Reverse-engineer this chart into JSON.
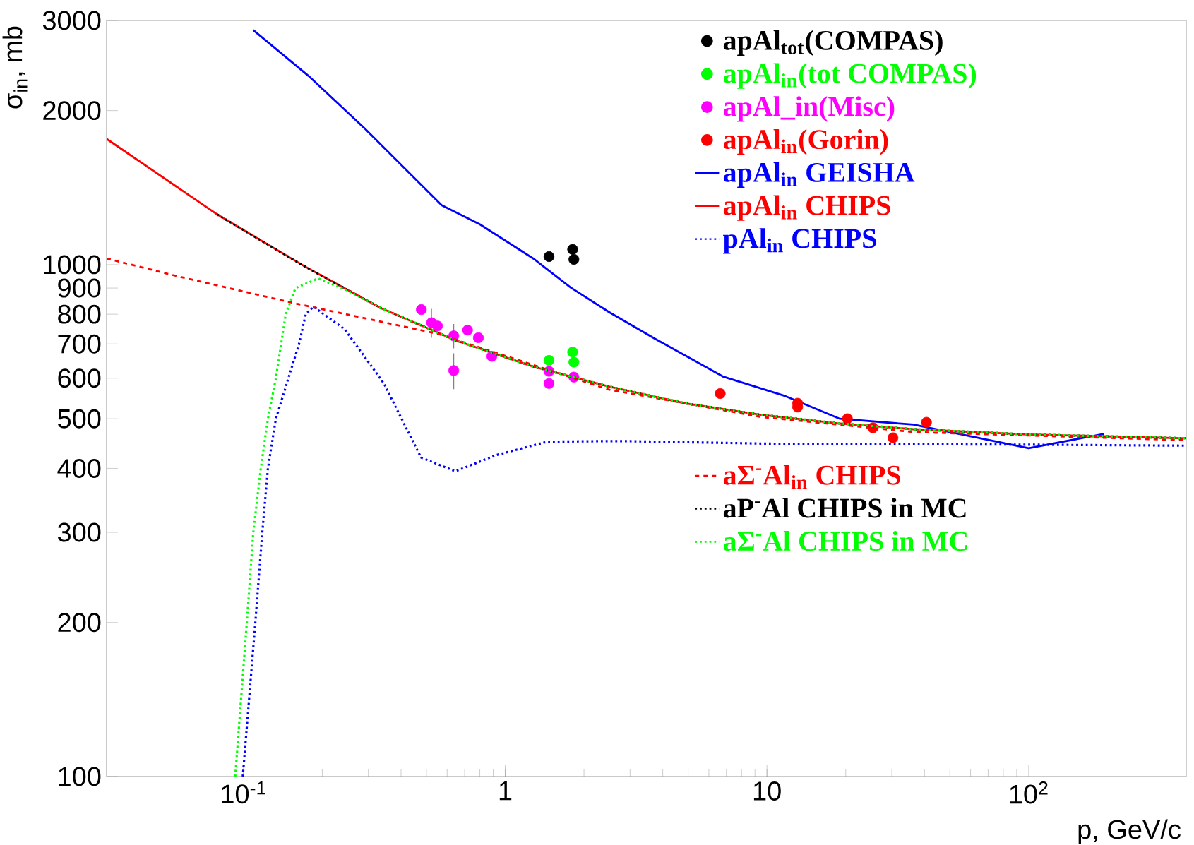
{
  "chart_data": {
    "type": "line",
    "xlabel": "p, GeV/c",
    "ylabel": "σ$_{in}$, mb",
    "log": "xy",
    "legend": "top right",
    "xlim": [
      0.03,
      400
    ],
    "ylim": [
      100,
      3000
    ],
    "xticks": [
      {
        "value": 0.1,
        "label": "10$^{-1}$"
      },
      1,
      10,
      {
        "value": 100,
        "label": "10$^{2}$"
      }
    ],
    "yticks": [
      100,
      200,
      300,
      400,
      500,
      600,
      700,
      800,
      900,
      1000,
      2000,
      3000
    ],
    "series": [
      {
        "name": "apAl$_{tot}$(COMPAS)",
        "type": "scatter",
        "color": "#000000",
        "x": [
          1.47,
          1.81,
          1.83
        ],
        "values": [
          1037,
          1071,
          1024
        ]
      },
      {
        "name": "apAl$_{in}$(tot COMPAS)",
        "type": "scatter",
        "color": "#00ff00",
        "x": [
          1.47,
          1.81,
          1.83
        ],
        "values": [
          650,
          675,
          645
        ]
      },
      {
        "name": "apAl_in(Misc)",
        "type": "scatter",
        "color": "#ff00ff",
        "x": [
          0.478,
          0.523,
          0.551,
          0.636,
          0.636,
          0.718,
          0.79,
          0.889,
          1.47,
          1.47,
          1.83
        ],
        "values": [
          817,
          770,
          759,
          726,
          621,
          745,
          720,
          662,
          619,
          586,
          603
        ],
        "errors": [
          null,
          50,
          null,
          40,
          50,
          null,
          null,
          null,
          null,
          null,
          null
        ]
      },
      {
        "name": "apAl$_{in}$(Gorin)",
        "type": "scatter",
        "color": "#ff0000",
        "x": [
          6.63,
          13.1,
          13.1,
          20.3,
          25.4,
          30.3,
          40.7
        ],
        "values": [
          560,
          536,
          527,
          500,
          480,
          459,
          492
        ]
      },
      {
        "name": "apAl$_{in}$ GEISHA",
        "line_style": "solid",
        "color": "#0000ff",
        "x": [
          0.109,
          0.177,
          0.292,
          0.572,
          0.8,
          1.28,
          1.78,
          2.49,
          3.73,
          6.82,
          11.6,
          19,
          36.3,
          100,
          194
        ],
        "values": [
          2872,
          2339,
          1841,
          1306,
          1199,
          1028,
          902,
          808,
          717,
          604,
          555,
          500,
          487,
          438,
          467
        ]
      },
      {
        "name": "apAl$_{in}$ CHIPS",
        "line_style": "solid",
        "color": "#ff0000",
        "x": [
          0.03,
          0.0793,
          0.171,
          0.334,
          0.653,
          1.28,
          2.49,
          4.87,
          9.5,
          18.6,
          36.3,
          99,
          400
        ],
        "values": [
          1761,
          1254,
          993,
          823,
          710,
          632,
          578,
          536,
          509,
          490,
          477,
          466,
          458
        ]
      },
      {
        "name": "pAl$_{in}$ CHIPS",
        "line_style": "dotted",
        "color": "#0000ff",
        "x": [
          0.0994,
          0.111,
          0.118,
          0.124,
          0.133,
          0.163,
          0.173,
          0.185,
          0.244,
          0.344,
          0.477,
          0.645,
          0.93,
          1.45,
          2.24,
          3,
          10,
          100,
          400
        ],
        "values": [
          100,
          200,
          300,
          400,
          500,
          700,
          800,
          828,
          747,
          586,
          420,
          395,
          425,
          451,
          452,
          452,
          447,
          445,
          443
        ]
      },
      {
        "name": "aΣ$^{-}$Al$_{in}$ CHIPS",
        "line_style": "dashed",
        "color": "#ff0000",
        "x": [
          0.03,
          0.0556,
          0.153,
          0.551,
          2.49,
          9.5,
          36.3,
          400
        ],
        "values": [
          1028,
          950,
          843,
          733,
          570,
          504,
          471,
          454
        ]
      },
      {
        "name": "aP$^{-}$Al CHIPS in MC",
        "line_style": "dotted",
        "color": "#000000",
        "x": [
          0.0793,
          0.171,
          0.334,
          0.653,
          1.28,
          2.49,
          4.87,
          9.5,
          18.6,
          36.3,
          99,
          400
        ],
        "values": [
          1254,
          993,
          823,
          710,
          632,
          578,
          536,
          509,
          490,
          477,
          466,
          458
        ]
      },
      {
        "name": "aΣ$^{-}$Al CHIPS in MC",
        "line_style": "dotted",
        "color": "#00ff00",
        "x": [
          0.093,
          0.103,
          0.109,
          0.1165,
          0.124,
          0.133,
          0.145,
          0.158,
          0.193,
          0.25,
          0.334,
          0.653,
          1.28,
          2.49,
          4.87,
          9.5,
          18.6,
          36.3,
          99,
          400
        ],
        "values": [
          100,
          200,
          300,
          400,
          500,
          600,
          800,
          900,
          940,
          890,
          823,
          710,
          632,
          578,
          536,
          509,
          490,
          477,
          466,
          458
        ]
      }
    ]
  }
}
